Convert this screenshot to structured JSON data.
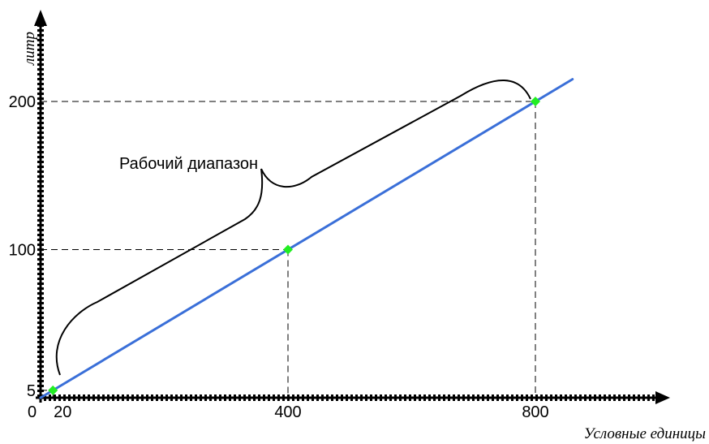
{
  "chart_data": {
    "type": "line",
    "xlabel": "Условные единицы",
    "ylabel": "литр",
    "x_origin_label": "0",
    "x_ticks": [
      20,
      400,
      800
    ],
    "y_ticks": [
      5,
      100,
      200
    ],
    "xlim": [
      0,
      1000
    ],
    "ylim": [
      0,
      210
    ],
    "grid": false,
    "colors": {
      "line": "#3a6fd8",
      "marker": "#22ee22",
      "axis": "#000000",
      "guide": "#000000"
    },
    "series": [
      {
        "name": "",
        "line_x": [
          0,
          860
        ],
        "line_y": [
          0,
          215
        ],
        "points": [
          {
            "x": 20,
            "y": 5
          },
          {
            "x": 400,
            "y": 100
          },
          {
            "x": 800,
            "y": 200
          }
        ]
      }
    ],
    "annotation": {
      "text": "Рабочий диапазон",
      "from": {
        "x": 20,
        "y": 5
      },
      "to": {
        "x": 800,
        "y": 200
      }
    }
  }
}
